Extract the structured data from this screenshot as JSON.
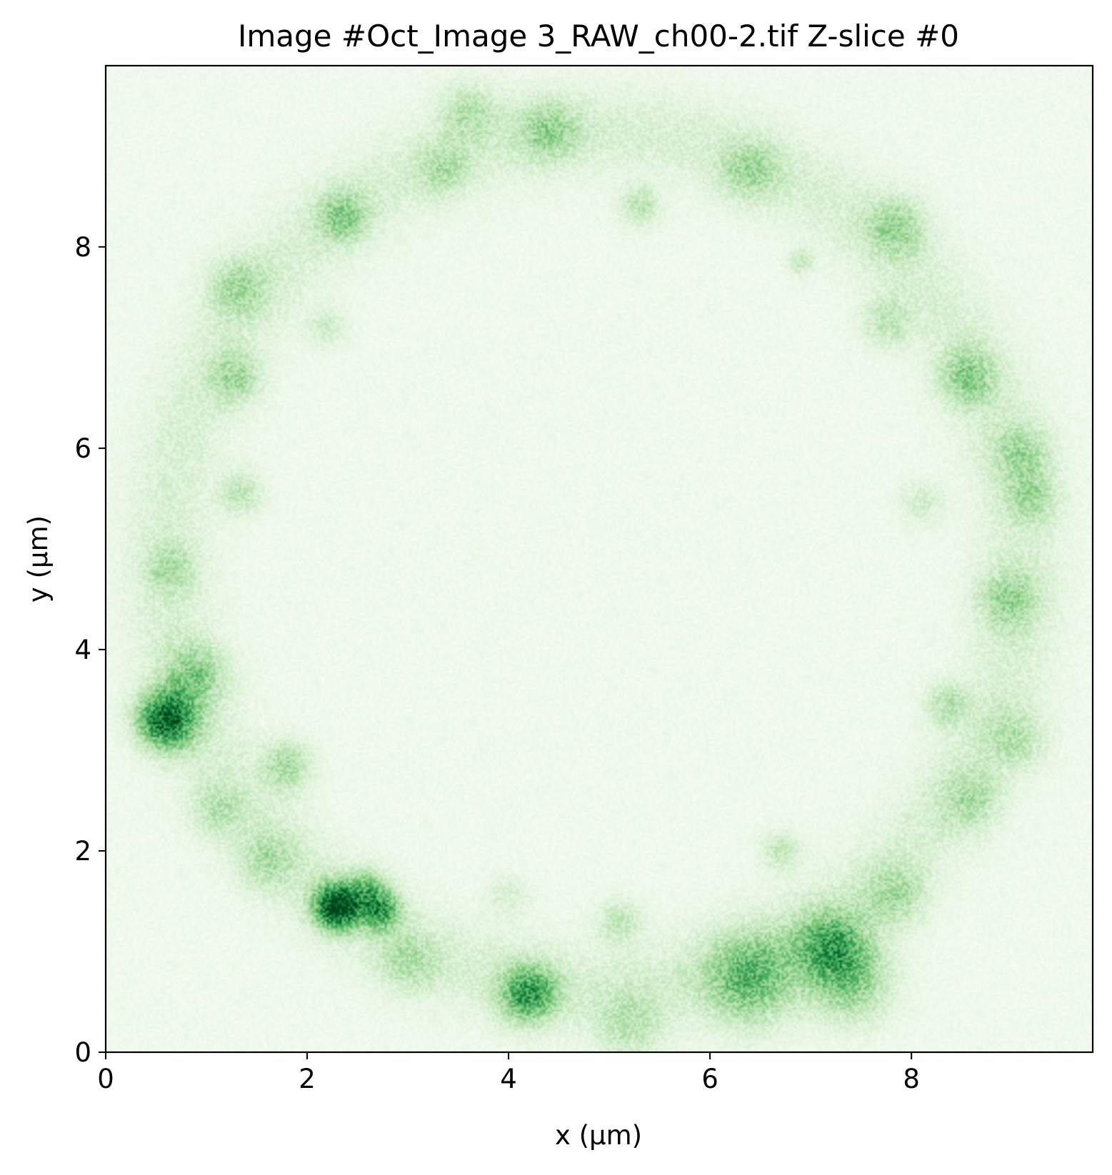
{
  "chart_data": {
    "type": "heatmap",
    "title": "Image #Oct_Image 3_RAW_ch00-2.tif Z-slice #0",
    "xlabel": "x (μm)",
    "ylabel": "y (μm)",
    "xlim": [
      0,
      9.8
    ],
    "ylim": [
      0,
      9.8
    ],
    "xticks": [
      0,
      2,
      4,
      6,
      8
    ],
    "yticks": [
      0,
      2,
      4,
      6,
      8
    ],
    "xtick_labels": [
      "0",
      "2",
      "4",
      "6",
      "8"
    ],
    "ytick_labels": [
      "0",
      "2",
      "4",
      "6",
      "8"
    ],
    "colormap": "Greens",
    "colormap_low": "#f7fcf5",
    "colormap_high": "#00441b",
    "grid": false,
    "background_level": 0.05,
    "ring": {
      "center_x": 4.85,
      "center_y": 4.9,
      "radius": 4.25,
      "intensity": 0.12,
      "width": 0.45
    },
    "hotspots": [
      {
        "x": 0.6,
        "y": 3.3,
        "intensity": 0.8,
        "radius": 0.28
      },
      {
        "x": 0.9,
        "y": 3.75,
        "intensity": 0.3,
        "radius": 0.3
      },
      {
        "x": 2.3,
        "y": 1.45,
        "intensity": 0.95,
        "radius": 0.22
      },
      {
        "x": 2.72,
        "y": 1.42,
        "intensity": 0.55,
        "radius": 0.2
      },
      {
        "x": 2.6,
        "y": 1.65,
        "intensity": 0.3,
        "radius": 0.18
      },
      {
        "x": 4.2,
        "y": 0.58,
        "intensity": 0.55,
        "radius": 0.28
      },
      {
        "x": 6.4,
        "y": 0.72,
        "intensity": 0.42,
        "radius": 0.45
      },
      {
        "x": 7.2,
        "y": 1.05,
        "intensity": 0.45,
        "radius": 0.35
      },
      {
        "x": 7.4,
        "y": 0.7,
        "intensity": 0.35,
        "radius": 0.4
      },
      {
        "x": 7.85,
        "y": 1.55,
        "intensity": 0.22,
        "radius": 0.3
      },
      {
        "x": 1.8,
        "y": 2.85,
        "intensity": 0.28,
        "radius": 0.25
      },
      {
        "x": 1.1,
        "y": 2.4,
        "intensity": 0.18,
        "radius": 0.25
      },
      {
        "x": 1.6,
        "y": 1.9,
        "intensity": 0.18,
        "radius": 0.3
      },
      {
        "x": 2.35,
        "y": 8.3,
        "intensity": 0.3,
        "radius": 0.25
      },
      {
        "x": 1.3,
        "y": 7.6,
        "intensity": 0.22,
        "radius": 0.3
      },
      {
        "x": 1.3,
        "y": 6.7,
        "intensity": 0.25,
        "radius": 0.25
      },
      {
        "x": 1.35,
        "y": 5.55,
        "intensity": 0.2,
        "radius": 0.22
      },
      {
        "x": 0.65,
        "y": 4.8,
        "intensity": 0.18,
        "radius": 0.25
      },
      {
        "x": 3.6,
        "y": 9.35,
        "intensity": 0.2,
        "radius": 0.3
      },
      {
        "x": 4.4,
        "y": 9.15,
        "intensity": 0.25,
        "radius": 0.3
      },
      {
        "x": 3.35,
        "y": 8.75,
        "intensity": 0.18,
        "radius": 0.25
      },
      {
        "x": 5.3,
        "y": 8.4,
        "intensity": 0.22,
        "radius": 0.2
      },
      {
        "x": 6.4,
        "y": 8.75,
        "intensity": 0.22,
        "radius": 0.3
      },
      {
        "x": 7.85,
        "y": 8.2,
        "intensity": 0.25,
        "radius": 0.3
      },
      {
        "x": 6.9,
        "y": 7.85,
        "intensity": 0.2,
        "radius": 0.12
      },
      {
        "x": 7.75,
        "y": 7.25,
        "intensity": 0.2,
        "radius": 0.25
      },
      {
        "x": 8.55,
        "y": 6.7,
        "intensity": 0.3,
        "radius": 0.28
      },
      {
        "x": 9.1,
        "y": 5.95,
        "intensity": 0.22,
        "radius": 0.3
      },
      {
        "x": 9.2,
        "y": 5.5,
        "intensity": 0.2,
        "radius": 0.25
      },
      {
        "x": 8.1,
        "y": 5.45,
        "intensity": 0.15,
        "radius": 0.22
      },
      {
        "x": 8.95,
        "y": 4.5,
        "intensity": 0.25,
        "radius": 0.3
      },
      {
        "x": 8.35,
        "y": 3.45,
        "intensity": 0.22,
        "radius": 0.22
      },
      {
        "x": 9.05,
        "y": 3.1,
        "intensity": 0.2,
        "radius": 0.3
      },
      {
        "x": 8.6,
        "y": 2.5,
        "intensity": 0.2,
        "radius": 0.3
      },
      {
        "x": 6.7,
        "y": 2.0,
        "intensity": 0.2,
        "radius": 0.2
      },
      {
        "x": 5.1,
        "y": 1.3,
        "intensity": 0.2,
        "radius": 0.22
      },
      {
        "x": 4.0,
        "y": 1.55,
        "intensity": 0.12,
        "radius": 0.22
      },
      {
        "x": 3.0,
        "y": 0.9,
        "intensity": 0.18,
        "radius": 0.3
      },
      {
        "x": 5.2,
        "y": 0.25,
        "intensity": 0.2,
        "radius": 0.35
      },
      {
        "x": 2.2,
        "y": 7.2,
        "intensity": 0.15,
        "radius": 0.2
      }
    ]
  }
}
